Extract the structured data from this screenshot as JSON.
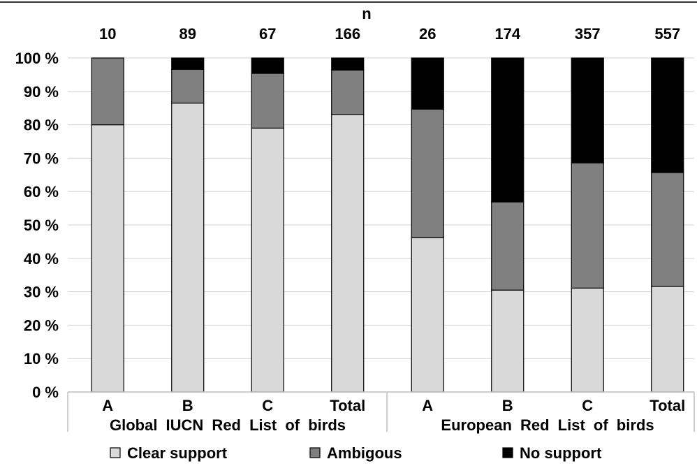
{
  "chart_data": {
    "type": "bar",
    "stacked": true,
    "title": "",
    "n_header": "n",
    "n_values": [
      "10",
      "89",
      "67",
      "166",
      "26",
      "174",
      "357",
      "557"
    ],
    "categories": [
      "A",
      "B",
      "C",
      "Total",
      "A",
      "B",
      "C",
      "Total"
    ],
    "groups": [
      {
        "label": "Global IUCN Red List of birds",
        "categories": [
          0,
          1,
          2,
          3
        ]
      },
      {
        "label": "European Red List of birds",
        "categories": [
          4,
          5,
          6,
          7
        ]
      }
    ],
    "series": [
      {
        "name": "Clear support",
        "color": "#d9d9d9",
        "values": [
          80,
          86.5,
          79,
          83.1,
          46.2,
          30.5,
          31.1,
          31.6
        ]
      },
      {
        "name": "Ambigous",
        "color": "#808080",
        "values": [
          20,
          10.1,
          16.4,
          13.3,
          38.5,
          26.4,
          37.5,
          34.1
        ]
      },
      {
        "name": "No support",
        "color": "#000000",
        "values": [
          0,
          3.4,
          4.6,
          3.6,
          15.3,
          43.1,
          31.4,
          34.3
        ]
      }
    ],
    "y_ticks": [
      "0 %",
      "10 %",
      "20 %",
      "30 %",
      "40 %",
      "50 %",
      "60 %",
      "70 %",
      "80 %",
      "90 %",
      "100 %"
    ],
    "ylim": [
      0,
      100
    ],
    "grid": true,
    "legend_position": "bottom"
  }
}
